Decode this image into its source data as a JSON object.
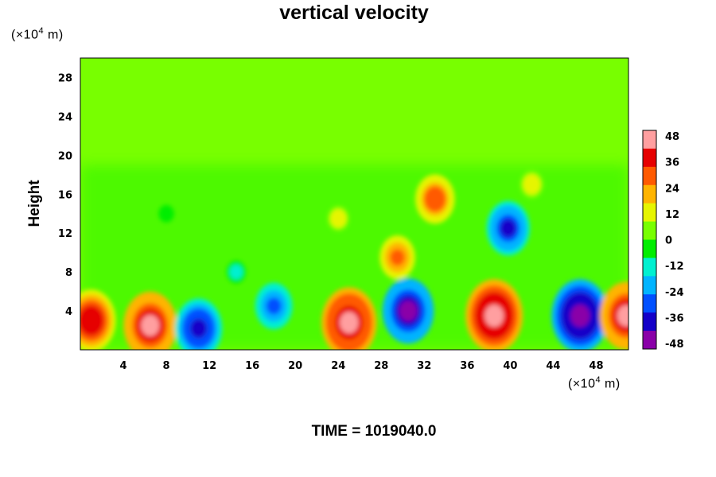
{
  "chart_data": {
    "type": "heatmap",
    "title": "vertical velocity",
    "ylabel": "Height",
    "xunit_prefix": "(×10",
    "xunit_exp": "4",
    "xunit_suffix": " m)",
    "yunit_prefix": "(×10",
    "yunit_exp": "4",
    "yunit_suffix": " m)",
    "xlim": [
      0,
      51
    ],
    "ylim": [
      0,
      30
    ],
    "xticks": [
      "4",
      "8",
      "12",
      "16",
      "20",
      "24",
      "28",
      "32",
      "36",
      "40",
      "44",
      "48"
    ],
    "yticks": [
      "4",
      "8",
      "12",
      "16",
      "20",
      "24",
      "28"
    ],
    "colorbar": {
      "ticks": [
        "48",
        "36",
        "24",
        "12",
        "0",
        "-12",
        "-24",
        "-36",
        "-48"
      ],
      "range": [
        -50,
        50
      ],
      "colormap": [
        "#8a00a8",
        "#1400c8",
        "#0050ff",
        "#00b4ff",
        "#00f0d0",
        "#00ee00",
        "#78ff00",
        "#e6f500",
        "#ffb400",
        "#ff5a00",
        "#e60000",
        "#ff9fa0"
      ]
    },
    "features": [
      {
        "x": 1.0,
        "y": 3.0,
        "value": 40
      },
      {
        "x": 6.5,
        "y": 2.5,
        "value": 44
      },
      {
        "x": 11.0,
        "y": 2.2,
        "value": -38
      },
      {
        "x": 18.0,
        "y": 4.5,
        "value": -28
      },
      {
        "x": 25.0,
        "y": 2.8,
        "value": 46
      },
      {
        "x": 29.5,
        "y": 9.5,
        "value": 26
      },
      {
        "x": 30.5,
        "y": 4.0,
        "value": -42
      },
      {
        "x": 33.0,
        "y": 15.5,
        "value": 30
      },
      {
        "x": 38.5,
        "y": 3.5,
        "value": 48
      },
      {
        "x": 39.8,
        "y": 12.5,
        "value": -34
      },
      {
        "x": 46.5,
        "y": 3.5,
        "value": -48
      },
      {
        "x": 50.8,
        "y": 3.5,
        "value": 44
      },
      {
        "x": 42.0,
        "y": 17.0,
        "value": 14
      },
      {
        "x": 24.0,
        "y": 13.5,
        "value": 12
      },
      {
        "x": 8.0,
        "y": 14.0,
        "value": -6
      },
      {
        "x": 14.5,
        "y": 8.0,
        "value": -10
      }
    ],
    "time_label": "TIME = 1019040.0"
  }
}
